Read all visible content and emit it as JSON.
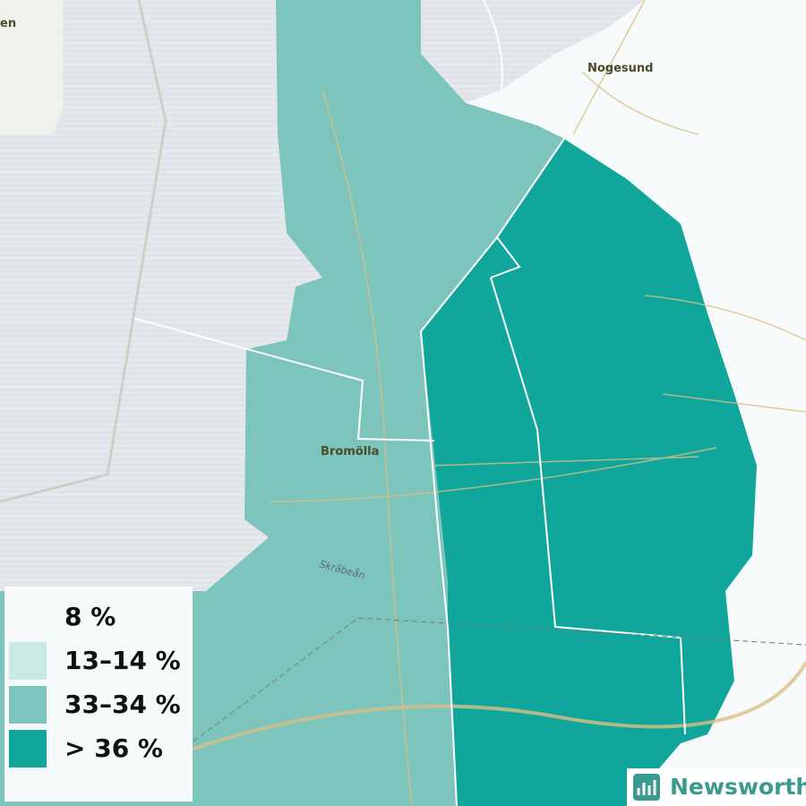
{
  "places": [
    {
      "label": "en"
    },
    {
      "label": "Nogesund"
    },
    {
      "label": "Bromölla"
    },
    {
      "label": "Skräbeån"
    }
  ],
  "legend": {
    "items": [
      {
        "label": "8 %",
        "color": "#f6fafa"
      },
      {
        "label": "13–14 %",
        "color": "#c9e9e5"
      },
      {
        "label": "33–34 %",
        "color": "#7dc5bc"
      },
      {
        "label": "> 36 %",
        "color": "#10a69c"
      }
    ]
  },
  "brand": {
    "label": "Newsworthy"
  }
}
